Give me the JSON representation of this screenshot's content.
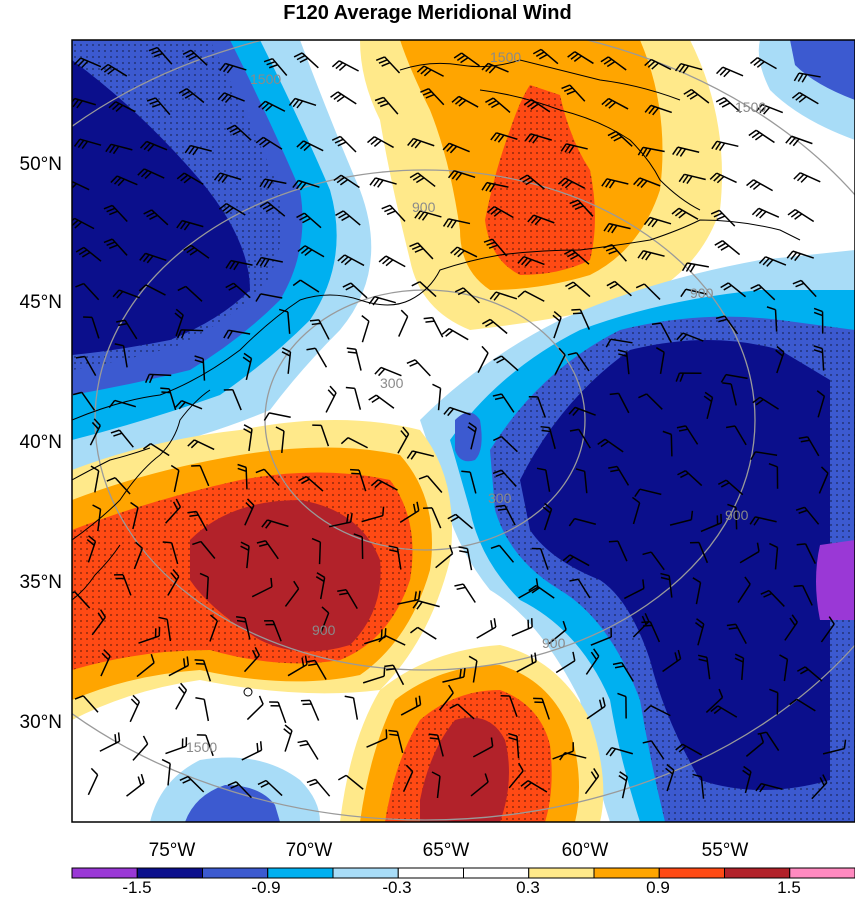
{
  "title": "F120 Average Meridional Wind",
  "lat_labels": [
    "50°N",
    "45°N",
    "40°N",
    "35°N",
    "30°N"
  ],
  "lon_labels": [
    "75°W",
    "70°W",
    "65°W",
    "60°W",
    "55°W"
  ],
  "ring_labels": [
    "300",
    "300",
    "900",
    "900",
    "900",
    "900",
    "900",
    "1500",
    "1500",
    "1500",
    "1500"
  ],
  "colorbar": {
    "colors": [
      "#9a38d6",
      "#0b0f8c",
      "#3c5ad0",
      "#00b0f0",
      "#a8dcf7",
      "#ffffff",
      "#ffffff",
      "#ffe98a",
      "#ffa500",
      "#ff4a14",
      "#b2222a",
      "#ff8ac0"
    ],
    "labels": [
      "-1.5",
      "-0.9",
      "-0.3",
      "0.3",
      "0.9",
      "1.5"
    ]
  },
  "colors": {
    "deep_negative": "#0b0f8c",
    "negative": "#3c5ad0",
    "cyan": "#00b0f0",
    "light_blue": "#a8dcf7",
    "yellow": "#ffe98a",
    "orange": "#ffa500",
    "red_orange": "#ff4a14",
    "dark_red": "#b2222a",
    "purple": "#9a38d6",
    "ring_gray": "#9a9a9a"
  }
}
